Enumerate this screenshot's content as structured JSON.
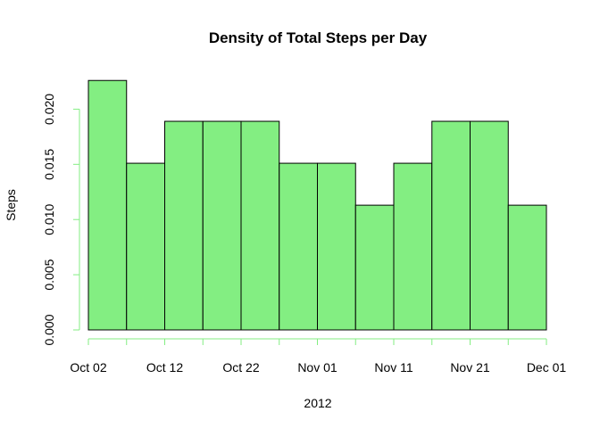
{
  "chart_data": {
    "type": "bar",
    "title": "Density of Total Steps per Day",
    "xlabel": "2012",
    "ylabel": "Steps",
    "x_tick_labels": [
      "Oct 02",
      "Oct 12",
      "Oct 22",
      "Nov 01",
      "Nov 11",
      "Nov 21",
      "Dec 01"
    ],
    "y_tick_labels": [
      "0.000",
      "0.005",
      "0.010",
      "0.015",
      "0.020"
    ],
    "y_ticks": [
      0,
      0.005,
      0.01,
      0.015,
      0.02
    ],
    "ylim": [
      0,
      0.0235
    ],
    "bins": [
      {
        "start": "2012-10-01",
        "end": "2012-10-06",
        "value": 0.0226
      },
      {
        "start": "2012-10-06",
        "end": "2012-10-11",
        "value": 0.0151
      },
      {
        "start": "2012-10-11",
        "end": "2012-10-16",
        "value": 0.0189
      },
      {
        "start": "2012-10-16",
        "end": "2012-10-21",
        "value": 0.0189
      },
      {
        "start": "2012-10-21",
        "end": "2012-10-26",
        "value": 0.0189
      },
      {
        "start": "2012-10-26",
        "end": "2012-10-31",
        "value": 0.0151
      },
      {
        "start": "2012-10-31",
        "end": "2012-11-05",
        "value": 0.0151
      },
      {
        "start": "2012-11-05",
        "end": "2012-11-10",
        "value": 0.0113
      },
      {
        "start": "2012-11-10",
        "end": "2012-11-15",
        "value": 0.0151
      },
      {
        "start": "2012-11-15",
        "end": "2012-11-20",
        "value": 0.0189
      },
      {
        "start": "2012-11-20",
        "end": "2012-11-25",
        "value": 0.0189
      },
      {
        "start": "2012-11-25",
        "end": "2012-11-30",
        "value": 0.0113
      }
    ],
    "bar_color": "#83ee82",
    "bar_border_color": "#000000",
    "axis_color": "#83ee82",
    "grid": false
  }
}
